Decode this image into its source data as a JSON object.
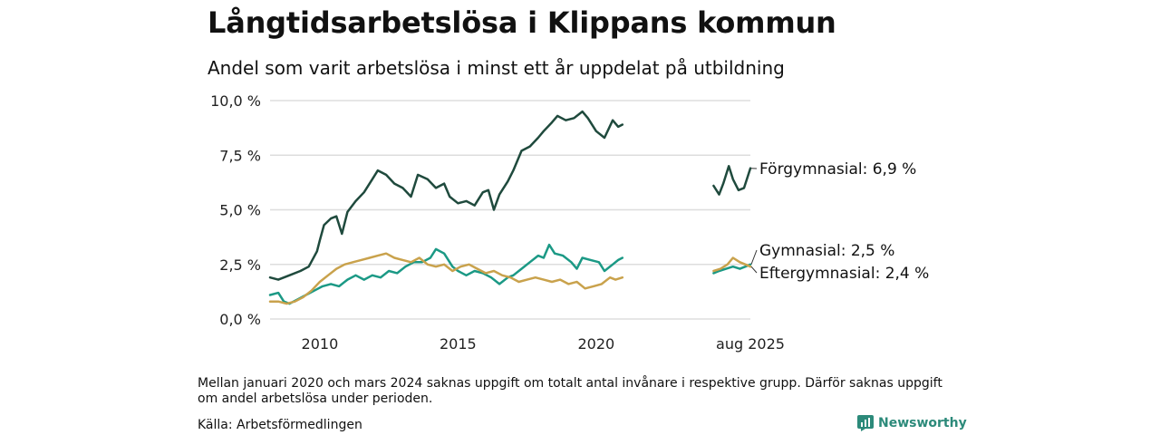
{
  "title": "Långtidsarbetslösa i Klippans kommun",
  "subtitle": "Andel som varit arbetslösa i minst ett år uppdelat på utbildning",
  "note": "Mellan januari 2020 och mars 2024 saknas uppgift om totalt antal invånare i respektive grupp. Därför saknas uppgift om andel arbetslösa under perioden.",
  "source": "Källa: Arbetsförmedlingen",
  "brand": {
    "name": "Newsworthy",
    "icon": "bar-chart-icon"
  },
  "colors": {
    "forgymnasial": "#1f4a3d",
    "gymnasial": "#1b9985",
    "eftergymnasial": "#c9a24c",
    "grid": "#dddddd"
  },
  "chart_data": {
    "type": "line",
    "y_tick_labels": [
      "0,0 %",
      "2,5 %",
      "5,0 %",
      "7,5 %",
      "10,0 %"
    ],
    "y_ticks": [
      0,
      2.5,
      5,
      7.5,
      10
    ],
    "ylim": [
      0,
      10
    ],
    "x_tick_labels": [
      "2010",
      "2015",
      "2020",
      "aug 2025"
    ],
    "x_ticks": [
      2010,
      2015,
      2020,
      2025.58
    ],
    "grid": true,
    "gap": "2021–2024 (no data)",
    "series": [
      {
        "key": "forgymnasial",
        "name": "Förgymnasial",
        "end_label": "Förgymnasial: 6,9 %",
        "segments": [
          [
            [
              2008.2,
              1.9
            ],
            [
              2008.5,
              1.8
            ],
            [
              2008.9,
              2.0
            ],
            [
              2009.3,
              2.2
            ],
            [
              2009.6,
              2.4
            ],
            [
              2009.9,
              3.1
            ],
            [
              2010.0,
              3.6
            ],
            [
              2010.15,
              4.3
            ],
            [
              2010.4,
              4.6
            ],
            [
              2010.6,
              4.7
            ],
            [
              2010.8,
              3.9
            ],
            [
              2011.0,
              4.9
            ],
            [
              2011.3,
              5.4
            ],
            [
              2011.6,
              5.8
            ],
            [
              2011.9,
              6.4
            ],
            [
              2012.1,
              6.8
            ],
            [
              2012.4,
              6.6
            ],
            [
              2012.7,
              6.2
            ],
            [
              2013.0,
              6.0
            ],
            [
              2013.3,
              5.6
            ],
            [
              2013.55,
              6.6
            ],
            [
              2013.9,
              6.4
            ],
            [
              2014.2,
              6.0
            ],
            [
              2014.5,
              6.2
            ],
            [
              2014.7,
              5.6
            ],
            [
              2015.0,
              5.3
            ],
            [
              2015.3,
              5.4
            ],
            [
              2015.6,
              5.2
            ],
            [
              2015.9,
              5.8
            ],
            [
              2016.1,
              5.9
            ],
            [
              2016.3,
              5.0
            ],
            [
              2016.5,
              5.7
            ],
            [
              2016.8,
              6.3
            ],
            [
              2017.0,
              6.8
            ],
            [
              2017.3,
              7.7
            ],
            [
              2017.6,
              7.9
            ],
            [
              2017.9,
              8.3
            ],
            [
              2018.1,
              8.6
            ],
            [
              2018.4,
              9.0
            ],
            [
              2018.6,
              9.3
            ],
            [
              2018.9,
              9.1
            ],
            [
              2019.2,
              9.2
            ],
            [
              2019.5,
              9.5
            ],
            [
              2019.7,
              9.2
            ],
            [
              2020.0,
              8.6
            ],
            [
              2020.3,
              8.3
            ],
            [
              2020.6,
              9.1
            ],
            [
              2020.8,
              8.8
            ],
            [
              2020.95,
              8.9
            ]
          ],
          [
            [
              2024.25,
              6.1
            ],
            [
              2024.45,
              5.7
            ],
            [
              2024.6,
              6.2
            ],
            [
              2024.8,
              7.0
            ],
            [
              2024.95,
              6.4
            ],
            [
              2025.15,
              5.9
            ],
            [
              2025.35,
              6.0
            ],
            [
              2025.58,
              6.9
            ]
          ]
        ]
      },
      {
        "key": "gymnasial",
        "name": "Gymnasial",
        "end_label": "Gymnasial: 2,5 %",
        "segments": [
          [
            [
              2008.2,
              1.1
            ],
            [
              2008.5,
              1.2
            ],
            [
              2008.7,
              0.8
            ],
            [
              2008.9,
              0.7
            ],
            [
              2009.2,
              0.9
            ],
            [
              2009.5,
              1.1
            ],
            [
              2009.8,
              1.3
            ],
            [
              2010.1,
              1.5
            ],
            [
              2010.4,
              1.6
            ],
            [
              2010.7,
              1.5
            ],
            [
              2011.0,
              1.8
            ],
            [
              2011.3,
              2.0
            ],
            [
              2011.6,
              1.8
            ],
            [
              2011.9,
              2.0
            ],
            [
              2012.2,
              1.9
            ],
            [
              2012.5,
              2.2
            ],
            [
              2012.8,
              2.1
            ],
            [
              2013.1,
              2.4
            ],
            [
              2013.4,
              2.6
            ],
            [
              2013.7,
              2.6
            ],
            [
              2014.0,
              2.8
            ],
            [
              2014.2,
              3.2
            ],
            [
              2014.5,
              3.0
            ],
            [
              2014.8,
              2.4
            ],
            [
              2015.0,
              2.2
            ],
            [
              2015.3,
              2.0
            ],
            [
              2015.6,
              2.2
            ],
            [
              2015.9,
              2.1
            ],
            [
              2016.2,
              1.9
            ],
            [
              2016.5,
              1.6
            ],
            [
              2016.8,
              1.9
            ],
            [
              2017.0,
              2.0
            ],
            [
              2017.3,
              2.3
            ],
            [
              2017.6,
              2.6
            ],
            [
              2017.9,
              2.9
            ],
            [
              2018.1,
              2.8
            ],
            [
              2018.3,
              3.4
            ],
            [
              2018.5,
              3.0
            ],
            [
              2018.8,
              2.9
            ],
            [
              2019.1,
              2.6
            ],
            [
              2019.3,
              2.3
            ],
            [
              2019.5,
              2.8
            ],
            [
              2019.8,
              2.7
            ],
            [
              2020.1,
              2.6
            ],
            [
              2020.3,
              2.2
            ],
            [
              2020.6,
              2.5
            ],
            [
              2020.8,
              2.7
            ],
            [
              2020.95,
              2.8
            ]
          ],
          [
            [
              2024.25,
              2.1
            ],
            [
              2024.45,
              2.2
            ],
            [
              2024.7,
              2.3
            ],
            [
              2024.95,
              2.4
            ],
            [
              2025.2,
              2.3
            ],
            [
              2025.4,
              2.4
            ],
            [
              2025.58,
              2.5
            ]
          ]
        ]
      },
      {
        "key": "eftergymnasial",
        "name": "Eftergymnasial",
        "end_label": "Eftergymnasial: 2,4 %",
        "segments": [
          [
            [
              2008.2,
              0.8
            ],
            [
              2008.5,
              0.8
            ],
            [
              2008.8,
              0.7
            ],
            [
              2009.1,
              0.8
            ],
            [
              2009.4,
              1.0
            ],
            [
              2009.7,
              1.3
            ],
            [
              2010.0,
              1.7
            ],
            [
              2010.3,
              2.0
            ],
            [
              2010.6,
              2.3
            ],
            [
              2010.9,
              2.5
            ],
            [
              2011.2,
              2.6
            ],
            [
              2011.5,
              2.7
            ],
            [
              2011.8,
              2.8
            ],
            [
              2012.1,
              2.9
            ],
            [
              2012.4,
              3.0
            ],
            [
              2012.7,
              2.8
            ],
            [
              2013.0,
              2.7
            ],
            [
              2013.3,
              2.6
            ],
            [
              2013.6,
              2.8
            ],
            [
              2013.9,
              2.5
            ],
            [
              2014.2,
              2.4
            ],
            [
              2014.5,
              2.5
            ],
            [
              2014.8,
              2.2
            ],
            [
              2015.1,
              2.4
            ],
            [
              2015.4,
              2.5
            ],
            [
              2015.7,
              2.3
            ],
            [
              2016.0,
              2.1
            ],
            [
              2016.3,
              2.2
            ],
            [
              2016.6,
              2.0
            ],
            [
              2016.9,
              1.9
            ],
            [
              2017.2,
              1.7
            ],
            [
              2017.5,
              1.8
            ],
            [
              2017.8,
              1.9
            ],
            [
              2018.1,
              1.8
            ],
            [
              2018.4,
              1.7
            ],
            [
              2018.7,
              1.8
            ],
            [
              2019.0,
              1.6
            ],
            [
              2019.3,
              1.7
            ],
            [
              2019.6,
              1.4
            ],
            [
              2019.9,
              1.5
            ],
            [
              2020.2,
              1.6
            ],
            [
              2020.5,
              1.9
            ],
            [
              2020.7,
              1.8
            ],
            [
              2020.95,
              1.9
            ]
          ],
          [
            [
              2024.25,
              2.2
            ],
            [
              2024.5,
              2.3
            ],
            [
              2024.75,
              2.5
            ],
            [
              2024.95,
              2.8
            ],
            [
              2025.2,
              2.6
            ],
            [
              2025.4,
              2.5
            ],
            [
              2025.58,
              2.4
            ]
          ]
        ]
      }
    ]
  }
}
